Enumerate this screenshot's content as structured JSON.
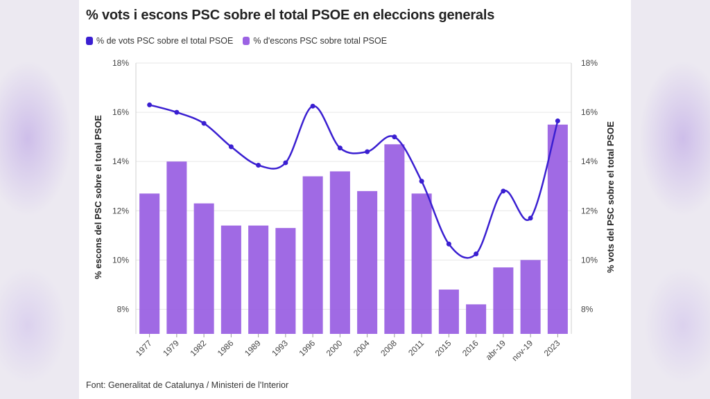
{
  "chart_data": {
    "type": "bar",
    "title": "% vots i escons PSC sobre el total PSOE en eleccions generals",
    "source": "Font: Generalitat de Catalunya / Ministeri de l'Interior",
    "categories": [
      "1977",
      "1979",
      "1982",
      "1986",
      "1989",
      "1993",
      "1996",
      "2000",
      "2004",
      "2008",
      "2011",
      "2015",
      "2016",
      "abr-19",
      "nov-19",
      "2023"
    ],
    "series": [
      {
        "name": "% de vots PSC sobre el total PSOE",
        "type": "line",
        "axis": "right",
        "color": "#3a1fd1",
        "values": [
          16.3,
          16.0,
          15.55,
          14.6,
          13.85,
          13.95,
          16.25,
          14.55,
          14.4,
          15.0,
          13.2,
          10.65,
          10.25,
          12.8,
          11.7,
          15.65
        ]
      },
      {
        "name": "% d'escons PSC sobre total PSOE",
        "type": "bar",
        "axis": "left",
        "color": "#9b62e3",
        "values": [
          12.7,
          14.0,
          12.3,
          11.4,
          11.4,
          11.3,
          13.4,
          13.6,
          12.8,
          14.7,
          12.7,
          8.8,
          8.2,
          9.7,
          10.0,
          15.5
        ]
      }
    ],
    "ylabel": "% escons del PSC sobre el total PSOE",
    "y2label": "% vots del PSC sobre el total PSOE",
    "ylim": [
      7,
      18
    ],
    "yticks": [
      "8%",
      "10%",
      "12%",
      "14%",
      "16%",
      "18%"
    ],
    "grid": true,
    "legend": "top-left"
  }
}
